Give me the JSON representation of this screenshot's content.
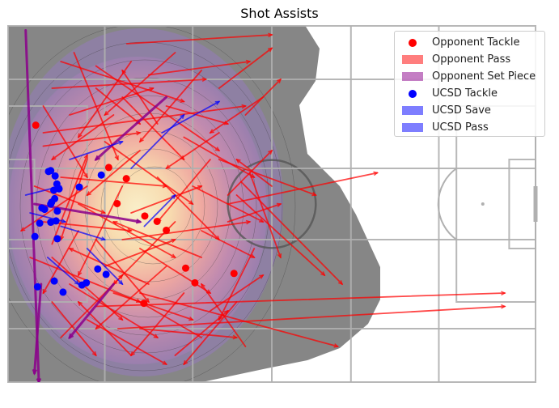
{
  "chart_data": {
    "type": "scatter",
    "title": "Shot Assists",
    "xlabel": "",
    "ylabel": "",
    "pitch": {
      "length": 120,
      "width": 80,
      "orientation": "attacking-right"
    },
    "xlim": [
      0,
      120
    ],
    "ylim": [
      0,
      80
    ],
    "grid": false,
    "legend_position": "top-right",
    "colors": {
      "opponent": "#ff0000",
      "opponent_set_piece": "#8b008b",
      "ucsd": "#0000ff",
      "pitch_lines": "#b0b0b0",
      "density_low": "#7f7f7f",
      "density_high": "#fff5cc"
    },
    "legend": [
      {
        "label": "Opponent Tackle",
        "marker": "dot",
        "color": "#ff0000"
      },
      {
        "label": "Opponent Pass",
        "marker": "patch",
        "color": "#ff0000"
      },
      {
        "label": "Opponent Set Piece",
        "marker": "patch",
        "color": "#8b008b"
      },
      {
        "label": "UCSD Tackle",
        "marker": "dot",
        "color": "#0000ff"
      },
      {
        "label": "UCSD Save",
        "marker": "patch",
        "color": "#0000ff"
      },
      {
        "label": "UCSD Pass",
        "marker": "patch",
        "color": "#0000ff"
      }
    ],
    "series": [
      {
        "name": "Opponent Tackle",
        "kind": "points",
        "points": [
          [
            6.3,
            22.3
          ],
          [
            22.9,
            31.8
          ],
          [
            24.8,
            39.9
          ],
          [
            40.4,
            54.4
          ],
          [
            51.4,
            55.6
          ],
          [
            26.9,
            34.3
          ],
          [
            31.1,
            42.7
          ],
          [
            33.9,
            43.9
          ],
          [
            36.0,
            45.9
          ],
          [
            42.5,
            57.7
          ],
          [
            30.9,
            62.3
          ]
        ]
      },
      {
        "name": "Opponent Pass",
        "kind": "arrows",
        "segments": [
          [
            12.0,
            8.0,
            40.0,
            17.0
          ],
          [
            10.0,
            14.0,
            45.0,
            12.0
          ],
          [
            15.0,
            6.0,
            25.0,
            30.0
          ],
          [
            20.0,
            9.0,
            48.0,
            28.0
          ],
          [
            28.0,
            8.0,
            16.0,
            25.0
          ],
          [
            32.0,
            11.0,
            55.0,
            8.0
          ],
          [
            38.0,
            6.0,
            22.0,
            20.0
          ],
          [
            44.0,
            10.0,
            30.0,
            26.0
          ],
          [
            48.0,
            14.0,
            60.0,
            5.0
          ],
          [
            26.0,
            16.0,
            40.0,
            30.0
          ],
          [
            14.0,
            20.0,
            33.0,
            14.0
          ],
          [
            36.0,
            18.0,
            50.0,
            22.0
          ],
          [
            8.0,
            27.0,
            30.0,
            24.0
          ],
          [
            18.0,
            30.0,
            12.0,
            48.0
          ],
          [
            22.0,
            26.0,
            42.0,
            40.0
          ],
          [
            30.0,
            28.0,
            18.0,
            38.0
          ],
          [
            40.0,
            25.0,
            56.0,
            34.0
          ],
          [
            46.0,
            30.0,
            34.0,
            44.0
          ],
          [
            12.0,
            34.0,
            36.0,
            36.0
          ],
          [
            26.0,
            36.0,
            16.0,
            56.0
          ],
          [
            34.0,
            34.0,
            48.0,
            48.0
          ],
          [
            50.0,
            38.0,
            60.0,
            28.0
          ],
          [
            16.0,
            40.0,
            38.0,
            52.0
          ],
          [
            28.0,
            42.0,
            44.0,
            36.0
          ],
          [
            8.0,
            44.0,
            28.0,
            46.0
          ],
          [
            38.0,
            44.0,
            24.0,
            58.0
          ],
          [
            44.0,
            46.0,
            56.0,
            52.0
          ],
          [
            20.0,
            48.0,
            32.0,
            62.0
          ],
          [
            10.0,
            52.0,
            26.0,
            66.0
          ],
          [
            30.0,
            50.0,
            46.0,
            60.0
          ],
          [
            36.0,
            54.0,
            20.0,
            68.0
          ],
          [
            14.0,
            58.0,
            34.0,
            70.0
          ],
          [
            24.0,
            60.0,
            42.0,
            66.0
          ],
          [
            40.0,
            60.0,
            28.0,
            74.0
          ],
          [
            46.0,
            64.0,
            58.0,
            56.0
          ],
          [
            18.0,
            66.0,
            36.0,
            76.0
          ],
          [
            30.0,
            68.0,
            52.0,
            70.0
          ],
          [
            44.0,
            70.0,
            30.0,
            62.0
          ],
          [
            52.0,
            62.0,
            40.0,
            76.0
          ],
          [
            54.0,
            20.0,
            62.0,
            12.0
          ],
          [
            58.0,
            16.0,
            46.0,
            24.0
          ],
          [
            10.0,
            62.0,
            20.0,
            74.0
          ],
          [
            6.0,
            36.0,
            22.0,
            42.0
          ],
          [
            50.0,
            44.0,
            62.0,
            40.0
          ],
          [
            24.0,
            20.0,
            10.0,
            30.0
          ],
          [
            34.0,
            22.0,
            26.0,
            10.0
          ],
          [
            42.0,
            36.0,
            58.0,
            44.0
          ],
          [
            16.0,
            46.0,
            8.0,
            60.0
          ],
          [
            56.0,
            50.0,
            48.0,
            66.0
          ],
          [
            12.0,
            70.0,
            26.0,
            56.0
          ],
          [
            38.0,
            74.0,
            50.0,
            64.0
          ],
          [
            48.0,
            24.0,
            36.0,
            32.0
          ],
          [
            20.0,
            14.0,
            30.0,
            22.0
          ],
          [
            60.0,
            36.0,
            52.0,
            30.0
          ],
          [
            22.0,
            54.0,
            38.0,
            48.0
          ],
          [
            32.0,
            58.0,
            14.0,
            50.0
          ],
          [
            8.0,
            18.0,
            18.0,
            34.0
          ],
          [
            44.0,
            52.0,
            24.0,
            44.0
          ],
          [
            28.0,
            74.0,
            16.0,
            62.0
          ],
          [
            54.0,
            72.0,
            44.0,
            58.0
          ],
          [
            30.0,
            60.0,
            75.0,
            72.0
          ],
          [
            25.0,
            68.0,
            113.0,
            63.0
          ],
          [
            20.0,
            63.0,
            113.0,
            60.0
          ],
          [
            50.0,
            40.0,
            84.0,
            33.0
          ],
          [
            52.0,
            38.0,
            72.0,
            56.0
          ],
          [
            48.0,
            30.0,
            70.0,
            38.0
          ],
          [
            55.0,
            33.0,
            62.0,
            52.0
          ],
          [
            53.0,
            35.0,
            76.0,
            58.0
          ],
          [
            27.0,
            4.0,
            60.0,
            2.0
          ],
          [
            8.0,
            24.0,
            54.0,
            18.0
          ],
          [
            10.0,
            49.0,
            18.0,
            29.0
          ],
          [
            5.0,
            52.0,
            30.0,
            62.0
          ],
          [
            26.0,
            48.0,
            55.0,
            44.0
          ],
          [
            18.0,
            36.0,
            3.0,
            46.0
          ]
        ]
      },
      {
        "name": "Opponent Set Piece",
        "kind": "arrows",
        "segments": [
          [
            4.0,
            1.0,
            7.0,
            80.0
          ],
          [
            36.0,
            16.0,
            20.0,
            30.0
          ],
          [
            6.0,
            40.0,
            30.0,
            44.0
          ],
          [
            24.0,
            58.0,
            14.0,
            70.0
          ],
          [
            7.5,
            58.0,
            6.0,
            78.0
          ]
        ]
      },
      {
        "name": "UCSD Tackle",
        "kind": "points",
        "points": [
          [
            9.2,
            32.7
          ],
          [
            10.4,
            36.9
          ],
          [
            9.7,
            40.0
          ],
          [
            10.6,
            38.8
          ],
          [
            11.1,
            35.5
          ],
          [
            11.6,
            36.6
          ],
          [
            9.9,
            39.6
          ],
          [
            8.3,
            41.2
          ],
          [
            7.7,
            40.9
          ],
          [
            11.2,
            41.6
          ],
          [
            10.9,
            43.8
          ],
          [
            11.2,
            47.8
          ],
          [
            9.7,
            44.1
          ],
          [
            7.2,
            44.3
          ],
          [
            6.1,
            47.3
          ],
          [
            16.2,
            36.2
          ],
          [
            21.2,
            33.5
          ],
          [
            20.4,
            54.6
          ],
          [
            22.3,
            55.8
          ],
          [
            17.8,
            57.7
          ],
          [
            16.8,
            58.2
          ],
          [
            12.5,
            59.8
          ],
          [
            10.5,
            57.3
          ],
          [
            6.7,
            58.6
          ],
          [
            9.7,
            32.5
          ],
          [
            10.7,
            33.7
          ]
        ]
      },
      {
        "name": "UCSD Save",
        "kind": "arrows",
        "segments": [
          [
            4.0,
            38.0,
            12.0,
            36.0
          ],
          [
            5.0,
            42.0,
            13.0,
            44.0
          ]
        ]
      },
      {
        "name": "UCSD Pass",
        "kind": "arrows",
        "segments": [
          [
            28.0,
            32.0,
            40.0,
            20.0
          ],
          [
            35.0,
            24.0,
            48.0,
            17.0
          ],
          [
            18.0,
            50.0,
            26.0,
            58.0
          ],
          [
            12.0,
            45.0,
            22.0,
            48.0
          ],
          [
            9.0,
            52.0,
            16.0,
            58.0
          ],
          [
            14.0,
            30.0,
            26.0,
            26.0
          ],
          [
            31.0,
            45.0,
            38.0,
            38.0
          ]
        ]
      }
    ]
  }
}
